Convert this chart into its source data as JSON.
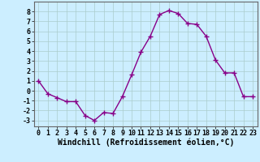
{
  "x": [
    0,
    1,
    2,
    3,
    4,
    5,
    6,
    7,
    8,
    9,
    10,
    11,
    12,
    13,
    14,
    15,
    16,
    17,
    18,
    19,
    20,
    21,
    22,
    23
  ],
  "y": [
    1,
    -0.3,
    -0.7,
    -1.1,
    -1.1,
    -2.5,
    -3.0,
    -2.2,
    -2.3,
    -0.6,
    1.6,
    3.9,
    5.5,
    7.7,
    8.1,
    7.8,
    6.8,
    6.7,
    5.5,
    3.1,
    1.8,
    1.8,
    -0.6,
    -0.6
  ],
  "line_color": "#880088",
  "marker": "+",
  "markersize": 4,
  "linewidth": 1.0,
  "markeredgewidth": 1.0,
  "xlabel": "Windchill (Refroidissement éolien,°C)",
  "xlabel_fontsize": 7,
  "ylabel_ticks": [
    -3,
    -2,
    -1,
    0,
    1,
    2,
    3,
    4,
    5,
    6,
    7,
    8
  ],
  "xtick_labels": [
    "0",
    "1",
    "2",
    "3",
    "4",
    "5",
    "6",
    "7",
    "8",
    "9",
    "10",
    "11",
    "12",
    "13",
    "14",
    "15",
    "16",
    "17",
    "18",
    "19",
    "20",
    "21",
    "22",
    "23"
  ],
  "ylim": [
    -3.6,
    9.0
  ],
  "xlim": [
    -0.5,
    23.5
  ],
  "bg_color": "#cceeff",
  "grid_color": "#aacccc",
  "tick_fontsize": 6,
  "spine_color": "#666666"
}
